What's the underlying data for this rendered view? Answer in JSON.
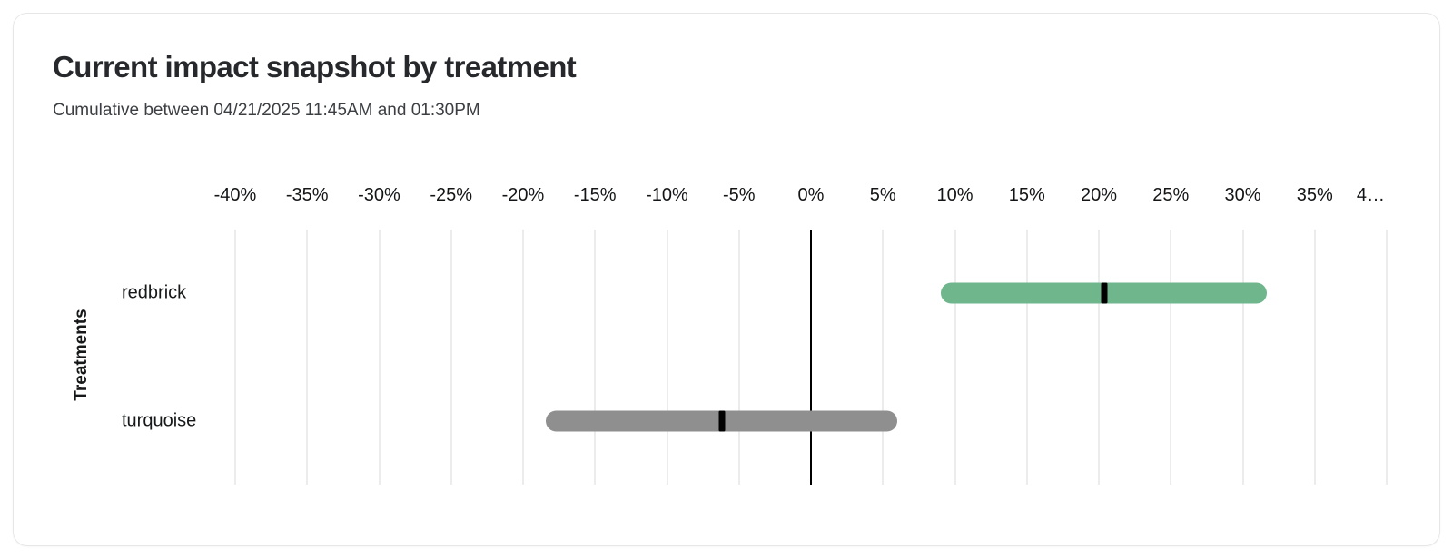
{
  "chart_data": {
    "type": "bar",
    "variant": "horizontal-range-bars-with-midpoint-marker",
    "title": "Current impact snapshot by treatment",
    "subtitle": "Cumulative between 04/21/2025 11:45AM and 01:30PM",
    "xlabel": "",
    "ylabel": "Treatments",
    "x_unit": "%",
    "xlim": [
      -40,
      40
    ],
    "grid": "vertical",
    "zero_line": true,
    "zero_line_color": "#000000",
    "gridline_color": "#ececec",
    "marker_color": "#000000",
    "x_ticks": [
      {
        "value": -40,
        "label": "-40%"
      },
      {
        "value": -35,
        "label": "-35%"
      },
      {
        "value": -30,
        "label": "-30%"
      },
      {
        "value": -25,
        "label": "-25%"
      },
      {
        "value": -20,
        "label": "-20%"
      },
      {
        "value": -15,
        "label": "-15%"
      },
      {
        "value": -10,
        "label": "-10%"
      },
      {
        "value": -5,
        "label": "-5%"
      },
      {
        "value": 0,
        "label": "0%"
      },
      {
        "value": 5,
        "label": "5%"
      },
      {
        "value": 10,
        "label": "10%"
      },
      {
        "value": 15,
        "label": "15%"
      },
      {
        "value": 20,
        "label": "20%"
      },
      {
        "value": 25,
        "label": "25%"
      },
      {
        "value": 30,
        "label": "30%"
      },
      {
        "value": 35,
        "label": "35%"
      },
      {
        "value": 40,
        "label": "4…",
        "truncated": true
      }
    ],
    "categories": [
      "redbrick",
      "turquoise"
    ],
    "series": [
      {
        "name": "redbrick",
        "low": 9.0,
        "high": 31.7,
        "point": 20.35,
        "color": "#6fb68c"
      },
      {
        "name": "turquoise",
        "low": -18.4,
        "high": 6.0,
        "point": -6.2,
        "color": "#8f8f8f"
      }
    ]
  },
  "colors": {
    "card_background": "#ffffff",
    "card_border": "#e7e7e7",
    "title_text": "#26282b",
    "subtitle_text": "#3b3e42",
    "axis_text": "#141517",
    "redbrick_bar": "#6fb68c",
    "turquoise_bar": "#8f8f8f"
  }
}
